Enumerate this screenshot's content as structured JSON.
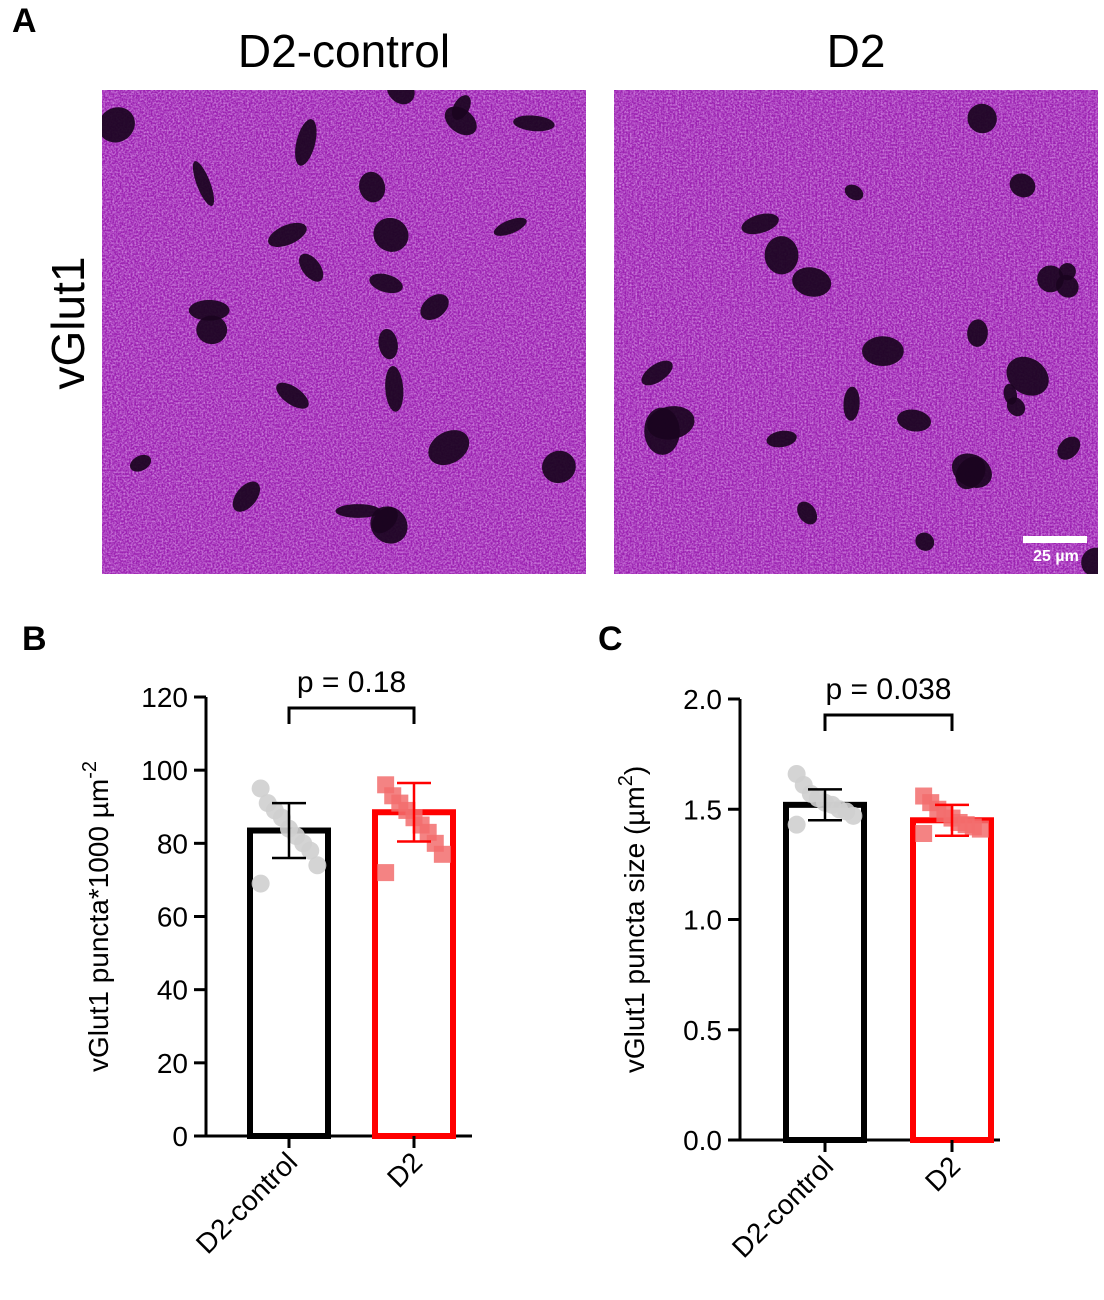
{
  "panel_a": {
    "letter": "A",
    "row_label": "vGlut1",
    "images": [
      {
        "title": "D2-control"
      },
      {
        "title": "D2",
        "scale_bar": "25 µm"
      }
    ],
    "stain_color": "#9a1fb0"
  },
  "chart_data": [
    {
      "type": "bar",
      "panel_letter": "B",
      "categories": [
        "D2-control",
        "D2"
      ],
      "values": [
        83.5,
        88.5
      ],
      "errors": [
        7.5,
        8.0
      ],
      "points": [
        [
          95,
          91,
          89,
          87,
          84,
          82,
          80,
          78,
          74,
          69
        ],
        [
          96,
          93,
          91,
          89,
          87,
          85,
          83,
          80,
          77,
          72
        ]
      ],
      "point_markers": [
        "circle",
        "square"
      ],
      "bar_colors": [
        "#000000",
        "#ff0000"
      ],
      "point_colors": [
        "#cfcfcf",
        "#f26d6d"
      ],
      "title": "",
      "xlabel": "",
      "ylabel": "vGlut1 puncta*1000 µm",
      "ylabel_sup": "-2",
      "ylim": [
        0,
        120
      ],
      "yticks": [
        0,
        20,
        40,
        60,
        80,
        100,
        120
      ],
      "annotation": "p = 0.18"
    },
    {
      "type": "bar",
      "panel_letter": "C",
      "categories": [
        "D2-control",
        "D2"
      ],
      "values": [
        1.52,
        1.45
      ],
      "errors": [
        0.07,
        0.07
      ],
      "points": [
        [
          1.66,
          1.61,
          1.57,
          1.55,
          1.53,
          1.52,
          1.5,
          1.49,
          1.47,
          1.43
        ],
        [
          1.56,
          1.53,
          1.5,
          1.48,
          1.46,
          1.44,
          1.43,
          1.42,
          1.41,
          1.39
        ]
      ],
      "point_markers": [
        "circle",
        "square"
      ],
      "bar_colors": [
        "#000000",
        "#ff0000"
      ],
      "point_colors": [
        "#cfcfcf",
        "#f26d6d"
      ],
      "title": "",
      "xlabel": "",
      "ylabel": "vGlut1 puncta size (µm",
      "ylabel_sup": "2",
      "ylabel_end": ")",
      "ylim": [
        0,
        2
      ],
      "yticks": [
        0.0,
        0.5,
        1.0,
        1.5,
        2.0
      ],
      "ytick_labels": [
        "0.0",
        "0.5",
        "1.0",
        "1.5",
        "2.0"
      ],
      "annotation": "p = 0.038"
    }
  ]
}
